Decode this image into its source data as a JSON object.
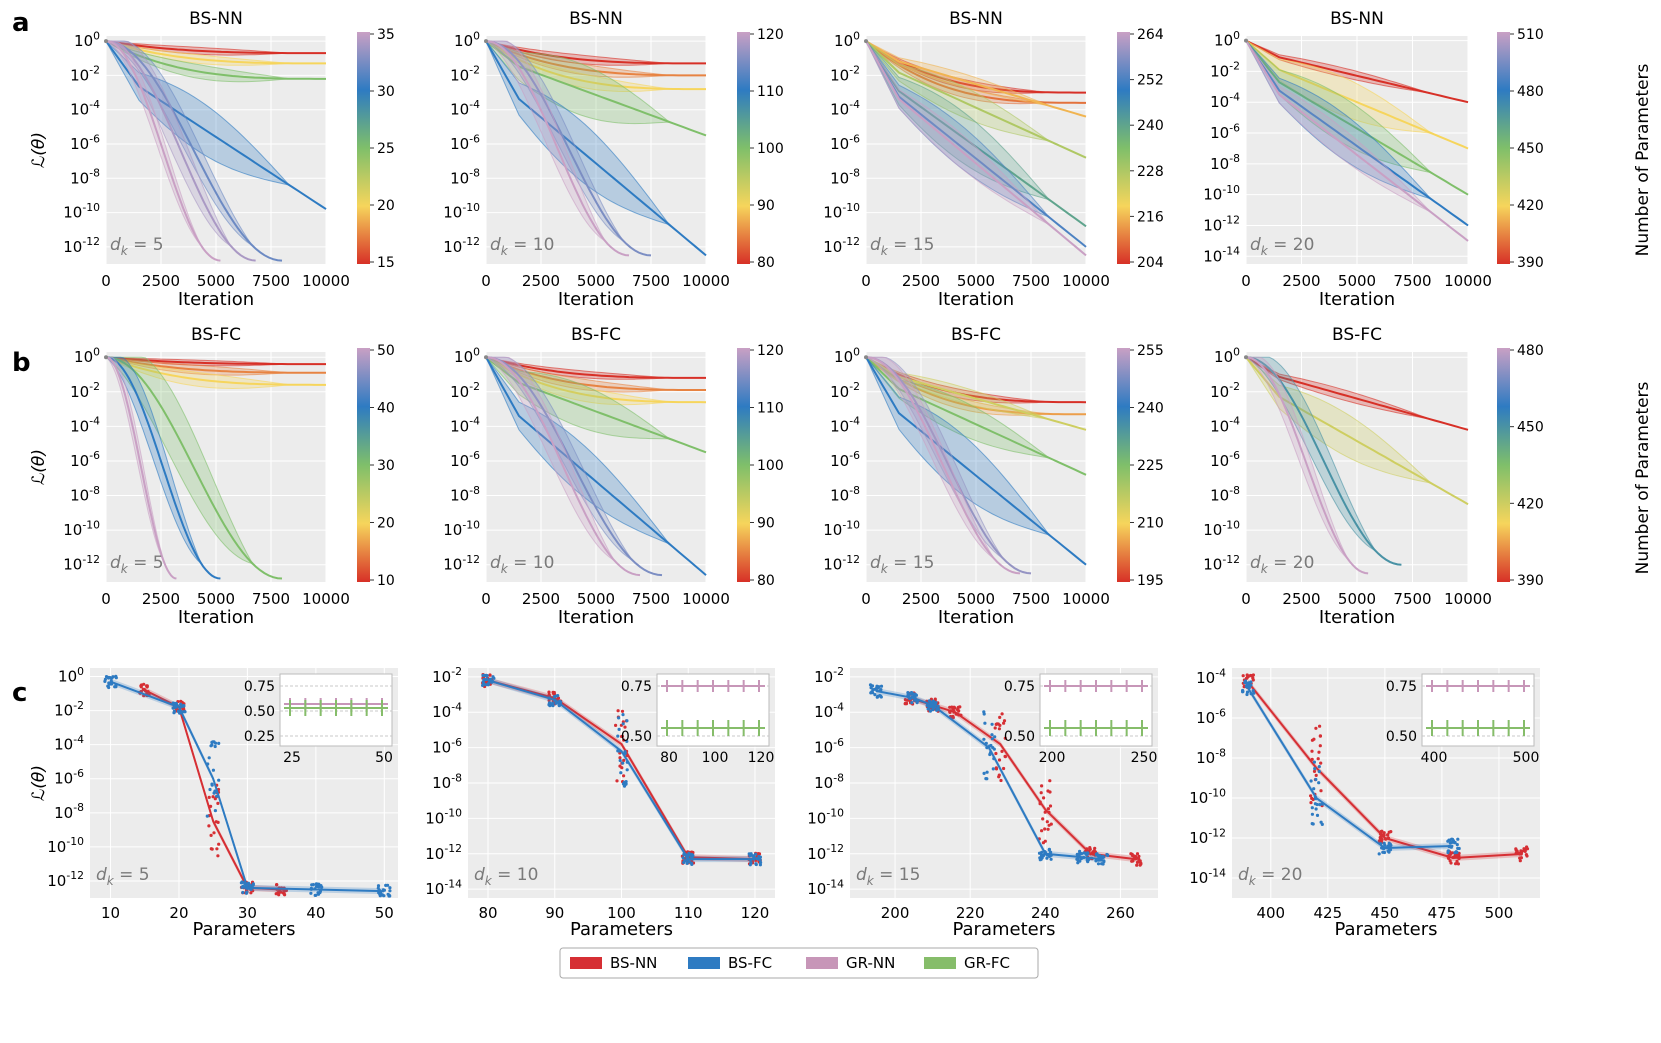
{
  "row_labels": [
    "a",
    "b",
    "c"
  ],
  "colorbar_label": "Number of Parameters",
  "legend": [
    {
      "name": "BS-NN",
      "color": "#d62f34"
    },
    {
      "name": "BS-FC",
      "color": "#2e7bc2"
    },
    {
      "name": "GR-NN",
      "color": "#c796b8"
    },
    {
      "name": "GR-FC",
      "color": "#86bd6a"
    }
  ],
  "chart_data": [
    {
      "type": "line",
      "row": "a",
      "title": "BS-NN",
      "dk_label": "d_k = 5",
      "xlabel": "Iteration",
      "ylabel": "ℒ(θ)",
      "y_log_ticks": [
        0,
        -2,
        -4,
        -6,
        -8,
        -10,
        -12
      ],
      "ylim_log": [
        -13,
        0.3
      ],
      "x_ticks": [
        "0",
        "2500",
        "5000",
        "7500",
        "10000"
      ],
      "xlim": [
        0,
        10000
      ],
      "colorbar_ticks": [
        "35",
        "30",
        "25",
        "20",
        "15"
      ],
      "series": [
        {
          "params": 15,
          "end_log": -0.7,
          "end_x": 10000,
          "band": 0.4
        },
        {
          "params": 20,
          "end_log": -1.3,
          "end_x": 10000,
          "band": 0.5
        },
        {
          "params": 25,
          "end_log": -2.2,
          "end_x": 10000,
          "band": 0.8
        },
        {
          "params": 30,
          "end_log": -9.8,
          "end_x": 10000,
          "band": 3.0
        },
        {
          "params": 32,
          "end_log": -12.8,
          "end_x": 8000,
          "band": 2.0
        },
        {
          "params": 34,
          "end_log": -12.8,
          "end_x": 6800,
          "band": 2.5
        },
        {
          "params": 35,
          "end_log": -12.8,
          "end_x": 5200,
          "band": 1.5
        }
      ]
    },
    {
      "type": "line",
      "row": "a",
      "title": "BS-NN",
      "dk_label": "d_k = 10",
      "xlabel": "Iteration",
      "ylabel": "",
      "y_log_ticks": [
        0,
        -2,
        -4,
        -6,
        -8,
        -10,
        -12
      ],
      "ylim_log": [
        -13,
        0.3
      ],
      "x_ticks": [
        "0",
        "2500",
        "5000",
        "7500",
        "10000"
      ],
      "xlim": [
        0,
        10000
      ],
      "colorbar_ticks": [
        "120",
        "110",
        "100",
        "90",
        "80"
      ],
      "series": [
        {
          "params": 80,
          "end_log": -1.3,
          "end_x": 10000,
          "band": 0.5
        },
        {
          "params": 85,
          "end_log": -2.0,
          "end_x": 10000,
          "band": 0.6
        },
        {
          "params": 90,
          "end_log": -2.8,
          "end_x": 10000,
          "band": 0.8
        },
        {
          "params": 100,
          "end_log": -5.5,
          "end_x": 10000,
          "band": 3.0
        },
        {
          "params": 110,
          "end_log": -12.5,
          "end_x": 10000,
          "band": 3.5
        },
        {
          "params": 115,
          "end_log": -12.5,
          "end_x": 7500,
          "band": 2.0
        },
        {
          "params": 120,
          "end_log": -12.5,
          "end_x": 6500,
          "band": 2.5
        }
      ]
    },
    {
      "type": "line",
      "row": "a",
      "title": "BS-NN",
      "dk_label": "d_k = 15",
      "xlabel": "Iteration",
      "ylabel": "",
      "y_log_ticks": [
        0,
        -2,
        -4,
        -6,
        -8,
        -10,
        -12
      ],
      "ylim_log": [
        -13,
        0.3
      ],
      "x_ticks": [
        "0",
        "2500",
        "5000",
        "7500",
        "10000"
      ],
      "xlim": [
        0,
        10000
      ],
      "colorbar_ticks": [
        "264",
        "252",
        "240",
        "228",
        "216",
        "204"
      ],
      "series": [
        {
          "params": 204,
          "end_log": -3.0,
          "end_x": 10000,
          "band": 0.5
        },
        {
          "params": 210,
          "end_log": -3.6,
          "end_x": 10000,
          "band": 0.6
        },
        {
          "params": 216,
          "end_log": -4.4,
          "end_x": 10000,
          "band": 0.8
        },
        {
          "params": 228,
          "end_log": -6.8,
          "end_x": 10000,
          "band": 1.8
        },
        {
          "params": 240,
          "end_log": -10.8,
          "end_x": 10000,
          "band": 3.0
        },
        {
          "params": 252,
          "end_log": -12.0,
          "end_x": 10000,
          "band": 2.5
        },
        {
          "params": 264,
          "end_log": -12.5,
          "end_x": 10000,
          "band": 2.0
        }
      ]
    },
    {
      "type": "line",
      "row": "a",
      "title": "BS-NN",
      "dk_label": "d_k = 20",
      "xlabel": "Iteration",
      "ylabel": "",
      "y_log_ticks": [
        0,
        -2,
        -4,
        -6,
        -8,
        -10,
        -12,
        -14
      ],
      "ylim_log": [
        -14.5,
        0.3
      ],
      "x_ticks": [
        "0",
        "2500",
        "5000",
        "7500",
        "10000"
      ],
      "xlim": [
        0,
        10000
      ],
      "colorbar_ticks": [
        "510",
        "480",
        "450",
        "420",
        "390"
      ],
      "series": [
        {
          "params": 390,
          "end_log": -4.0,
          "end_x": 10000,
          "band": 0.6
        },
        {
          "params": 420,
          "end_log": -7.0,
          "end_x": 10000,
          "band": 2.5
        },
        {
          "params": 450,
          "end_log": -10.0,
          "end_x": 10000,
          "band": 3.0
        },
        {
          "params": 480,
          "end_log": -12.0,
          "end_x": 10000,
          "band": 3.0
        },
        {
          "params": 510,
          "end_log": -13.0,
          "end_x": 10000,
          "band": 2.0
        }
      ]
    },
    {
      "type": "line",
      "row": "b",
      "title": "BS-FC",
      "dk_label": "d_k = 5",
      "xlabel": "Iteration",
      "ylabel": "ℒ(θ)",
      "y_log_ticks": [
        0,
        -2,
        -4,
        -6,
        -8,
        -10,
        -12
      ],
      "ylim_log": [
        -13,
        0.3
      ],
      "x_ticks": [
        "0",
        "2500",
        "5000",
        "7500",
        "10000"
      ],
      "xlim": [
        0,
        10000
      ],
      "colorbar_ticks": [
        "50",
        "40",
        "30",
        "20",
        "10"
      ],
      "series": [
        {
          "params": 10,
          "end_log": -0.4,
          "end_x": 10000,
          "band": 0.3
        },
        {
          "params": 15,
          "end_log": -0.9,
          "end_x": 10000,
          "band": 0.5
        },
        {
          "params": 20,
          "end_log": -1.6,
          "end_x": 10000,
          "band": 0.8
        },
        {
          "params": 30,
          "end_log": -12.8,
          "end_x": 8000,
          "band": 4.0
        },
        {
          "params": 40,
          "end_log": -12.8,
          "end_x": 5200,
          "band": 2.5
        },
        {
          "params": 50,
          "end_log": -12.8,
          "end_x": 3200,
          "band": 1.5
        }
      ]
    },
    {
      "type": "line",
      "row": "b",
      "title": "BS-FC",
      "dk_label": "d_k = 10",
      "xlabel": "Iteration",
      "ylabel": "",
      "y_log_ticks": [
        0,
        -2,
        -4,
        -6,
        -8,
        -10,
        -12
      ],
      "ylim_log": [
        -13,
        0.3
      ],
      "x_ticks": [
        "0",
        "2500",
        "5000",
        "7500",
        "10000"
      ],
      "xlim": [
        0,
        10000
      ],
      "colorbar_ticks": [
        "120",
        "110",
        "100",
        "90",
        "80"
      ],
      "series": [
        {
          "params": 80,
          "end_log": -1.2,
          "end_x": 10000,
          "band": 0.4
        },
        {
          "params": 85,
          "end_log": -1.9,
          "end_x": 10000,
          "band": 0.6
        },
        {
          "params": 90,
          "end_log": -2.6,
          "end_x": 10000,
          "band": 0.8
        },
        {
          "params": 100,
          "end_log": -5.5,
          "end_x": 10000,
          "band": 2.5
        },
        {
          "params": 110,
          "end_log": -12.6,
          "end_x": 10000,
          "band": 3.0
        },
        {
          "params": 115,
          "end_log": -12.6,
          "end_x": 8000,
          "band": 2.0
        },
        {
          "params": 120,
          "end_log": -12.6,
          "end_x": 7000,
          "band": 2.5
        }
      ]
    },
    {
      "type": "line",
      "row": "b",
      "title": "BS-FC",
      "dk_label": "d_k = 15",
      "xlabel": "Iteration",
      "ylabel": "",
      "y_log_ticks": [
        0,
        -2,
        -4,
        -6,
        -8,
        -10,
        -12
      ],
      "ylim_log": [
        -13,
        0.3
      ],
      "x_ticks": [
        "0",
        "2500",
        "5000",
        "7500",
        "10000"
      ],
      "xlim": [
        0,
        10000
      ],
      "colorbar_ticks": [
        "255",
        "240",
        "225",
        "210",
        "195"
      ],
      "series": [
        {
          "params": 195,
          "end_log": -2.6,
          "end_x": 10000,
          "band": 0.5
        },
        {
          "params": 205,
          "end_log": -3.3,
          "end_x": 10000,
          "band": 0.6
        },
        {
          "params": 215,
          "end_log": -4.2,
          "end_x": 10000,
          "band": 0.9
        },
        {
          "params": 225,
          "end_log": -6.8,
          "end_x": 10000,
          "band": 2.0
        },
        {
          "params": 240,
          "end_log": -12.0,
          "end_x": 10000,
          "band": 3.5
        },
        {
          "params": 250,
          "end_log": -12.5,
          "end_x": 7500,
          "band": 2.0
        },
        {
          "params": 255,
          "end_log": -12.5,
          "end_x": 7000,
          "band": 2.0
        }
      ]
    },
    {
      "type": "line",
      "row": "b",
      "title": "BS-FC",
      "dk_label": "d_k = 20",
      "xlabel": "Iteration",
      "ylabel": "",
      "y_log_ticks": [
        0,
        -2,
        -4,
        -6,
        -8,
        -10,
        -12
      ],
      "ylim_log": [
        -13,
        0.3
      ],
      "x_ticks": [
        "0",
        "2500",
        "5000",
        "7500",
        "10000"
      ],
      "xlim": [
        0,
        10000
      ],
      "colorbar_ticks": [
        "480",
        "450",
        "420",
        "390"
      ],
      "series": [
        {
          "params": 390,
          "end_log": -4.2,
          "end_x": 10000,
          "band": 0.6
        },
        {
          "params": 420,
          "end_log": -8.5,
          "end_x": 10000,
          "band": 2.5
        },
        {
          "params": 450,
          "end_log": -12.0,
          "end_x": 7000,
          "band": 2.5
        },
        {
          "params": 480,
          "end_log": -12.5,
          "end_x": 5500,
          "band": 2.0
        }
      ]
    },
    {
      "type": "scatter",
      "row": "c",
      "dk_label": "d_k = 5",
      "xlabel": "Parameters",
      "ylabel": "ℒ(θ)",
      "y_log_ticks": [
        0,
        -2,
        -4,
        -6,
        -8,
        -10,
        -12
      ],
      "ylim_log": [
        -13,
        0.5
      ],
      "x_ticks": [
        10,
        20,
        30,
        40,
        50
      ],
      "xlim": [
        7,
        52
      ],
      "bs_nn": {
        "x": [
          15,
          20,
          25,
          30,
          35
        ],
        "y_log": [
          -0.8,
          -1.8,
          -8.5,
          -12.4,
          -12.5
        ]
      },
      "bs_fc": {
        "x": [
          10,
          20,
          25,
          30,
          40,
          50
        ],
        "y_log": [
          -0.3,
          -1.8,
          -6.0,
          -12.4,
          -12.5,
          -12.6
        ]
      },
      "inset": {
        "x_ticks": [
          "25",
          "50"
        ],
        "y_ticks": [
          "0.75",
          "0.50",
          "0.25"
        ]
      }
    },
    {
      "type": "scatter",
      "row": "c",
      "dk_label": "d_k = 10",
      "xlabel": "Parameters",
      "ylabel": "",
      "y_log_ticks": [
        -2,
        -4,
        -6,
        -8,
        -10,
        -12,
        -14
      ],
      "ylim_log": [
        -14.5,
        -1.5
      ],
      "x_ticks": [
        80,
        90,
        100,
        110,
        120
      ],
      "xlim": [
        77,
        123
      ],
      "bs_nn": {
        "x": [
          80,
          90,
          100,
          110,
          120
        ],
        "y_log": [
          -2.2,
          -3.2,
          -5.8,
          -12.2,
          -12.3
        ]
      },
      "bs_fc": {
        "x": [
          80,
          90,
          100,
          110,
          120
        ],
        "y_log": [
          -2.2,
          -3.3,
          -6.2,
          -12.3,
          -12.3
        ]
      },
      "inset": {
        "x_ticks": [
          "80",
          "100",
          "120"
        ],
        "y_ticks": [
          "0.75",
          "0.50"
        ]
      }
    },
    {
      "type": "scatter",
      "row": "c",
      "dk_label": "d_k = 15",
      "xlabel": "Parameters",
      "ylabel": "",
      "y_log_ticks": [
        -2,
        -4,
        -6,
        -8,
        -10,
        -12,
        -14
      ],
      "ylim_log": [
        -14.5,
        -1.5
      ],
      "x_ticks": [
        200,
        220,
        240,
        260
      ],
      "xlim": [
        188,
        270
      ],
      "bs_nn": {
        "x": [
          204,
          210,
          216,
          228,
          240,
          252,
          264
        ],
        "y_log": [
          -3.2,
          -3.6,
          -4.0,
          -5.8,
          -9.5,
          -12.0,
          -12.3
        ]
      },
      "bs_fc": {
        "x": [
          195,
          205,
          210,
          225,
          240,
          250,
          255
        ],
        "y_log": [
          -2.8,
          -3.2,
          -3.6,
          -6.0,
          -12.0,
          -12.2,
          -12.3
        ]
      },
      "inset": {
        "x_ticks": [
          "200",
          "250"
        ],
        "y_ticks": [
          "0.75",
          "0.50"
        ]
      }
    },
    {
      "type": "scatter",
      "row": "c",
      "dk_label": "d_k = 20",
      "xlabel": "Parameters",
      "ylabel": "",
      "y_log_ticks": [
        -4,
        -6,
        -8,
        -10,
        -12,
        -14
      ],
      "ylim_log": [
        -15,
        -3.5
      ],
      "x_ticks": [
        400,
        425,
        450,
        475,
        500
      ],
      "xlim": [
        383,
        518
      ],
      "bs_nn": {
        "x": [
          390,
          420,
          450,
          480,
          510
        ],
        "y_log": [
          -4.2,
          -8.5,
          -12.0,
          -13.0,
          -12.8
        ]
      },
      "bs_fc": {
        "x": [
          390,
          420,
          450,
          480
        ],
        "y_log": [
          -4.5,
          -10.0,
          -12.5,
          -12.4
        ]
      },
      "inset": {
        "x_ticks": [
          "400",
          "500"
        ],
        "y_ticks": [
          "0.75",
          "0.50"
        ]
      }
    }
  ]
}
